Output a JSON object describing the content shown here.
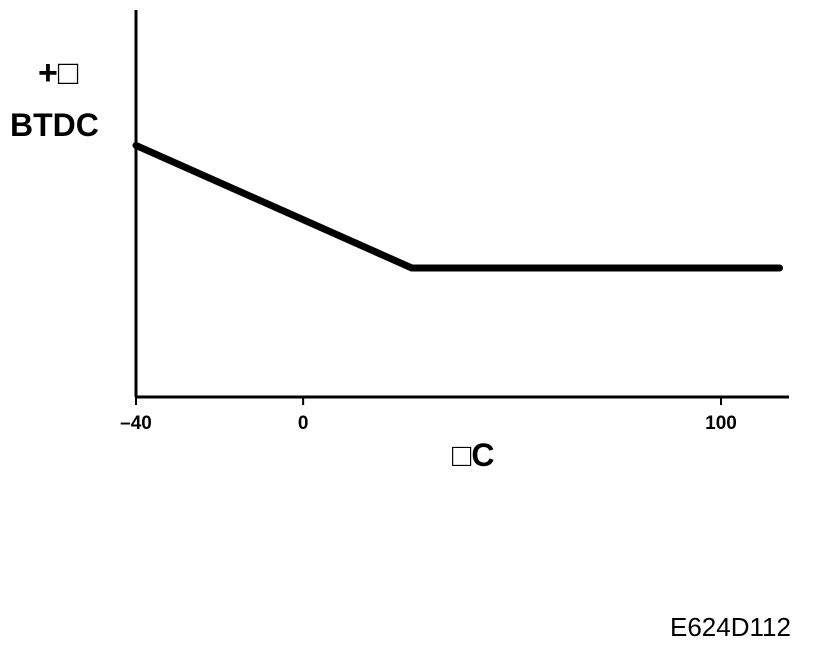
{
  "chart_data": {
    "type": "line",
    "ylabel_sign": "+□",
    "ylabel": "BTDC",
    "xlabel": "□C",
    "x_ticks": [
      "-40",
      "0",
      "100"
    ],
    "x_tick_values": [
      -40,
      0,
      100
    ],
    "xlim": [
      -40,
      117
    ],
    "series": [
      {
        "x": [
          -40,
          26,
          114
        ],
        "y": [
          3.9,
          2.0,
          2.0
        ]
      }
    ],
    "ylim": [
      0,
      6
    ],
    "y_ticks": [],
    "grid": false,
    "line_color": "#000000"
  },
  "figure_code": "E624D112"
}
